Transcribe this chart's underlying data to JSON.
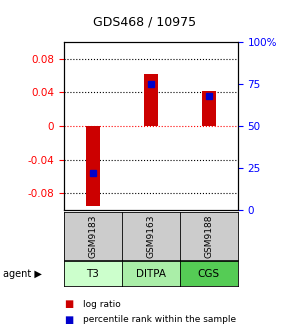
{
  "title": "GDS468 / 10975",
  "samples": [
    "GSM9183",
    "GSM9163",
    "GSM9188"
  ],
  "agents": [
    "T3",
    "DITPA",
    "CGS"
  ],
  "log_ratios": [
    -0.095,
    0.062,
    0.042
  ],
  "percentile_ranks": [
    22,
    75,
    68
  ],
  "bar_color": "#cc0000",
  "percentile_color": "#0000cc",
  "ylim_left": [
    -0.1,
    0.1
  ],
  "yticks_left": [
    -0.08,
    -0.04,
    0.0,
    0.04,
    0.08
  ],
  "ytick_labels_left": [
    "-0.08",
    "-0.04",
    "0",
    "0.04",
    "0.08"
  ],
  "ylim_right": [
    0,
    100
  ],
  "yticks_right": [
    0,
    25,
    50,
    75,
    100
  ],
  "ytick_labels_right": [
    "0",
    "25",
    "50",
    "75",
    "100%"
  ],
  "agent_colors": [
    "#ccffcc",
    "#aaeea8",
    "#55cc55"
  ],
  "box_color": "#cccccc",
  "legend_log_label": "log ratio",
  "legend_pct_label": "percentile rank within the sample"
}
